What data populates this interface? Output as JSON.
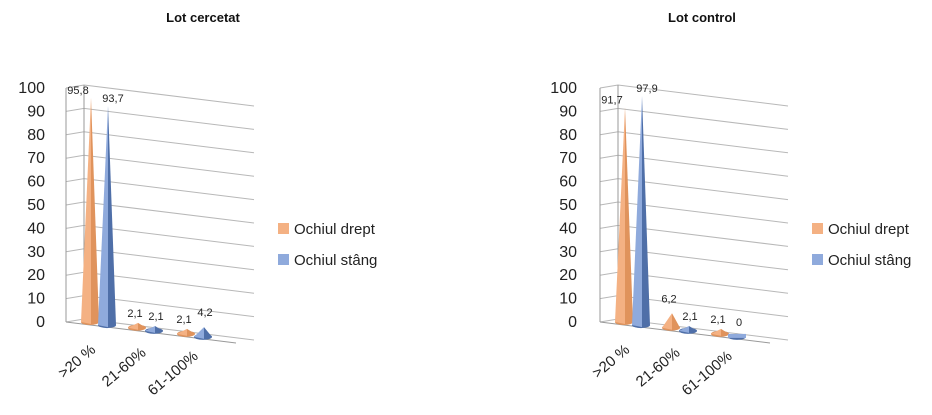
{
  "chart_data": [
    {
      "type": "bar",
      "style": "3d-cone",
      "title": "Lot cercetat",
      "categories": [
        ">20 %",
        "21-60%",
        "61-100%"
      ],
      "ylim": [
        0,
        100
      ],
      "yticks": [
        0,
        10,
        20,
        30,
        40,
        50,
        60,
        70,
        80,
        90,
        100
      ],
      "grid": true,
      "legend": "right",
      "series": [
        {
          "name": "Ochiul drept",
          "color": "#f4b183",
          "shade": "#e0935c",
          "values": [
            95.8,
            2.1,
            2.1
          ],
          "labels": [
            "95,8",
            "2,1",
            "2,1"
          ]
        },
        {
          "name": "Ochiul stâng",
          "color": "#8faadc",
          "shade": "#4f6fa8",
          "values": [
            93.7,
            2.1,
            4.2
          ],
          "labels": [
            "93,7",
            "2,1",
            "4,2"
          ]
        }
      ]
    },
    {
      "type": "bar",
      "style": "3d-cone",
      "title": "Lot control",
      "categories": [
        ">20 %",
        "21-60%",
        "61-100%"
      ],
      "ylim": [
        0,
        100
      ],
      "yticks": [
        0,
        10,
        20,
        30,
        40,
        50,
        60,
        70,
        80,
        90,
        100
      ],
      "grid": true,
      "legend": "right",
      "series": [
        {
          "name": "Ochiul drept",
          "color": "#f4b183",
          "shade": "#e0935c",
          "values": [
            91.7,
            6.2,
            2.1
          ],
          "labels": [
            "91,7",
            "6,2",
            "2,1"
          ]
        },
        {
          "name": "Ochiul stâng",
          "color": "#8faadc",
          "shade": "#4f6fa8",
          "values": [
            97.9,
            2.1,
            0
          ],
          "labels": [
            "97,9",
            "2,1",
            "0"
          ]
        }
      ]
    }
  ]
}
